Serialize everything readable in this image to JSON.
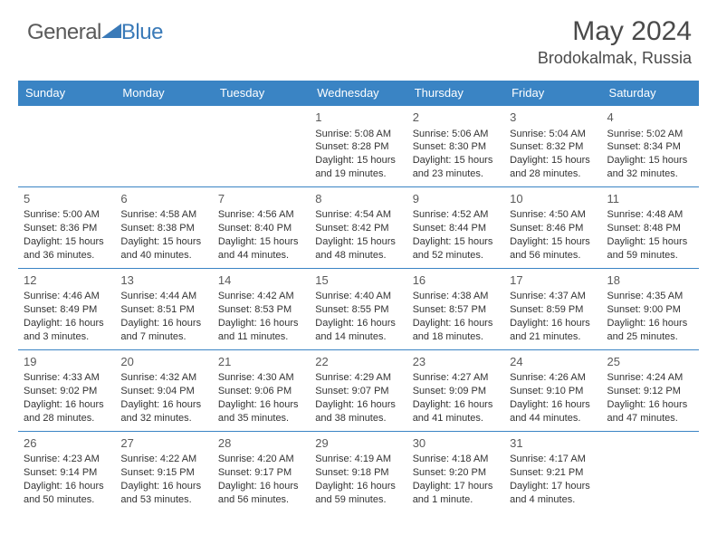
{
  "logo": {
    "general": "General",
    "blue": "Blue"
  },
  "header": {
    "title": "May 2024",
    "location": "Brodokalmak, Russia"
  },
  "colors": {
    "header_bg": "#3a84c4",
    "border": "#3a84c4"
  },
  "weekdays": [
    "Sunday",
    "Monday",
    "Tuesday",
    "Wednesday",
    "Thursday",
    "Friday",
    "Saturday"
  ],
  "weeks": [
    [
      null,
      null,
      null,
      {
        "n": "1",
        "rise": "5:08 AM",
        "set": "8:28 PM",
        "dlh": "15",
        "dlm": "19"
      },
      {
        "n": "2",
        "rise": "5:06 AM",
        "set": "8:30 PM",
        "dlh": "15",
        "dlm": "23"
      },
      {
        "n": "3",
        "rise": "5:04 AM",
        "set": "8:32 PM",
        "dlh": "15",
        "dlm": "28"
      },
      {
        "n": "4",
        "rise": "5:02 AM",
        "set": "8:34 PM",
        "dlh": "15",
        "dlm": "32"
      }
    ],
    [
      {
        "n": "5",
        "rise": "5:00 AM",
        "set": "8:36 PM",
        "dlh": "15",
        "dlm": "36"
      },
      {
        "n": "6",
        "rise": "4:58 AM",
        "set": "8:38 PM",
        "dlh": "15",
        "dlm": "40"
      },
      {
        "n": "7",
        "rise": "4:56 AM",
        "set": "8:40 PM",
        "dlh": "15",
        "dlm": "44"
      },
      {
        "n": "8",
        "rise": "4:54 AM",
        "set": "8:42 PM",
        "dlh": "15",
        "dlm": "48"
      },
      {
        "n": "9",
        "rise": "4:52 AM",
        "set": "8:44 PM",
        "dlh": "15",
        "dlm": "52"
      },
      {
        "n": "10",
        "rise": "4:50 AM",
        "set": "8:46 PM",
        "dlh": "15",
        "dlm": "56"
      },
      {
        "n": "11",
        "rise": "4:48 AM",
        "set": "8:48 PM",
        "dlh": "15",
        "dlm": "59"
      }
    ],
    [
      {
        "n": "12",
        "rise": "4:46 AM",
        "set": "8:49 PM",
        "dlh": "16",
        "dlm": "3"
      },
      {
        "n": "13",
        "rise": "4:44 AM",
        "set": "8:51 PM",
        "dlh": "16",
        "dlm": "7"
      },
      {
        "n": "14",
        "rise": "4:42 AM",
        "set": "8:53 PM",
        "dlh": "16",
        "dlm": "11"
      },
      {
        "n": "15",
        "rise": "4:40 AM",
        "set": "8:55 PM",
        "dlh": "16",
        "dlm": "14"
      },
      {
        "n": "16",
        "rise": "4:38 AM",
        "set": "8:57 PM",
        "dlh": "16",
        "dlm": "18"
      },
      {
        "n": "17",
        "rise": "4:37 AM",
        "set": "8:59 PM",
        "dlh": "16",
        "dlm": "21"
      },
      {
        "n": "18",
        "rise": "4:35 AM",
        "set": "9:00 PM",
        "dlh": "16",
        "dlm": "25"
      }
    ],
    [
      {
        "n": "19",
        "rise": "4:33 AM",
        "set": "9:02 PM",
        "dlh": "16",
        "dlm": "28"
      },
      {
        "n": "20",
        "rise": "4:32 AM",
        "set": "9:04 PM",
        "dlh": "16",
        "dlm": "32"
      },
      {
        "n": "21",
        "rise": "4:30 AM",
        "set": "9:06 PM",
        "dlh": "16",
        "dlm": "35"
      },
      {
        "n": "22",
        "rise": "4:29 AM",
        "set": "9:07 PM",
        "dlh": "16",
        "dlm": "38"
      },
      {
        "n": "23",
        "rise": "4:27 AM",
        "set": "9:09 PM",
        "dlh": "16",
        "dlm": "41"
      },
      {
        "n": "24",
        "rise": "4:26 AM",
        "set": "9:10 PM",
        "dlh": "16",
        "dlm": "44"
      },
      {
        "n": "25",
        "rise": "4:24 AM",
        "set": "9:12 PM",
        "dlh": "16",
        "dlm": "47"
      }
    ],
    [
      {
        "n": "26",
        "rise": "4:23 AM",
        "set": "9:14 PM",
        "dlh": "16",
        "dlm": "50"
      },
      {
        "n": "27",
        "rise": "4:22 AM",
        "set": "9:15 PM",
        "dlh": "16",
        "dlm": "53"
      },
      {
        "n": "28",
        "rise": "4:20 AM",
        "set": "9:17 PM",
        "dlh": "16",
        "dlm": "56"
      },
      {
        "n": "29",
        "rise": "4:19 AM",
        "set": "9:18 PM",
        "dlh": "16",
        "dlm": "59"
      },
      {
        "n": "30",
        "rise": "4:18 AM",
        "set": "9:20 PM",
        "dlh": "17",
        "dlm": "1",
        "singular": true
      },
      {
        "n": "31",
        "rise": "4:17 AM",
        "set": "9:21 PM",
        "dlh": "17",
        "dlm": "4"
      },
      null
    ]
  ],
  "labels": {
    "sunrise": "Sunrise:",
    "sunset": "Sunset:",
    "daylight": "Daylight:",
    "hours": "hours",
    "and": "and",
    "minutes": "minutes.",
    "minute": "minute."
  }
}
